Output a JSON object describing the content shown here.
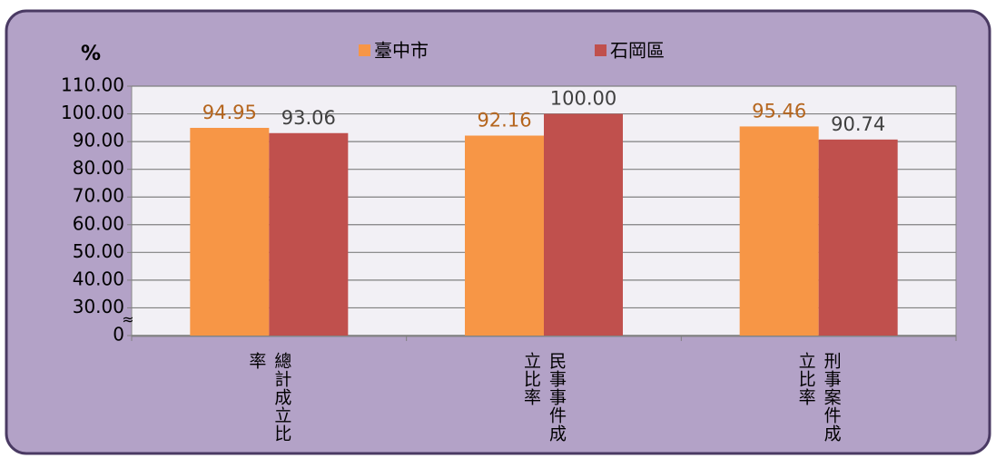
{
  "chart_data": {
    "type": "bar",
    "y_label": "%",
    "categories": [
      "總計成立比率",
      "民事事件成立比率",
      "刑事案件成立比率"
    ],
    "series": [
      {
        "name": "臺中市",
        "color": "#f79646",
        "values": [
          94.95,
          92.16,
          95.46
        ],
        "value_labels": [
          "94.95",
          "92.16",
          "95.46"
        ],
        "label_color": "#b5651d"
      },
      {
        "name": "石岡區",
        "color": "#c0504d",
        "values": [
          93.06,
          100,
          90.74
        ],
        "value_labels": [
          "93.06",
          "100.00",
          "90.74"
        ],
        "label_color": "#404040"
      }
    ],
    "ylim": [
      0,
      110
    ],
    "yticks": [
      0,
      {
        "value": 30,
        "label": "30.00"
      },
      {
        "value": 40,
        "label": "40.00"
      },
      {
        "value": 50,
        "label": "50.00"
      },
      {
        "value": 60,
        "label": "60.00"
      },
      {
        "value": 70,
        "label": "70.00"
      },
      {
        "value": 80,
        "label": "80.00"
      },
      {
        "value": 90,
        "label": "90.00"
      },
      {
        "value": 100,
        "label": "100.00"
      },
      {
        "value": 110,
        "label": "110.00"
      }
    ],
    "axis_break": true,
    "grid": true
  }
}
